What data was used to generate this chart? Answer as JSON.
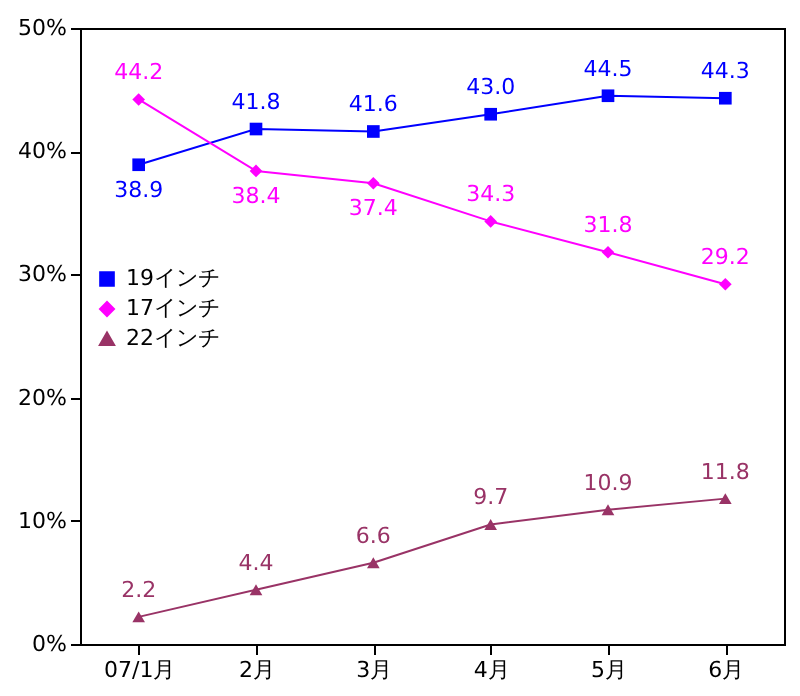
{
  "chart_data": {
    "type": "line",
    "categories": [
      "07/1月",
      "2月",
      "3月",
      "4月",
      "5月",
      "6月"
    ],
    "series": [
      {
        "name": "19インチ",
        "color": "#0000ff",
        "marker": "square",
        "values": [
          38.9,
          41.8,
          41.6,
          43.0,
          44.5,
          44.3
        ],
        "value_labels": [
          "38.9",
          "41.8",
          "41.6",
          "43.0",
          "44.5",
          "44.3"
        ]
      },
      {
        "name": "17インチ",
        "color": "#ff00ff",
        "marker": "diamond",
        "values": [
          44.2,
          38.4,
          37.4,
          34.3,
          31.8,
          29.2
        ],
        "value_labels": [
          "44.2",
          "38.4",
          "37.4",
          "34.3",
          "31.8",
          "29.2"
        ]
      },
      {
        "name": "22インチ",
        "color": "#993366",
        "marker": "triangle",
        "values": [
          2.2,
          4.4,
          6.6,
          9.7,
          10.9,
          11.8
        ],
        "value_labels": [
          "2.2",
          "4.4",
          "6.6",
          "9.7",
          "10.9",
          "11.8"
        ]
      }
    ],
    "ylim": [
      0,
      50
    ],
    "yticks": [
      {
        "value": 0,
        "label": "0%"
      },
      {
        "value": 10,
        "label": "10%"
      },
      {
        "value": 20,
        "label": "20%"
      },
      {
        "value": 30,
        "label": "30%"
      },
      {
        "value": 40,
        "label": "40%"
      },
      {
        "value": 50,
        "label": "50%"
      }
    ],
    "legend": "left",
    "grid": false,
    "line_style": "solid"
  }
}
